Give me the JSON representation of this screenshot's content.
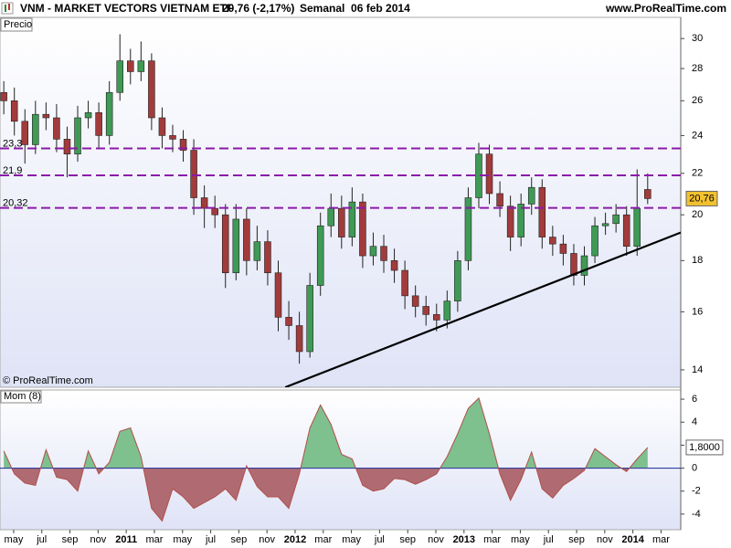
{
  "header": {
    "symbol": "VNM - MARKET VECTORS VIETNAM ETF",
    "change": "20,76 (-2,17%)",
    "period": "Semanal  06 feb 2014",
    "site": "www.ProRealTime.com"
  },
  "chart_data": [
    {
      "type": "candlestick",
      "title": "Precio",
      "credit": "© ProRealTime.com",
      "log_scale": true,
      "up_color": "#3f9a55",
      "down_color": "#a23b3b",
      "xlim": [
        -0.97,
        47.4
      ],
      "ylim": [
        13.45,
        31.5
      ],
      "yticks": [
        14,
        16,
        18,
        20,
        22,
        24,
        26,
        28,
        30
      ],
      "x": [
        -0.7,
        0.05,
        0.8,
        1.55,
        2.3,
        3.05,
        3.8,
        4.55,
        5.3,
        6.05,
        6.8,
        7.55,
        8.3,
        9.05,
        9.8,
        10.55,
        11.3,
        12.05,
        12.8,
        13.55,
        14.3,
        15.05,
        15.8,
        16.55,
        17.3,
        18.05,
        18.8,
        19.55,
        20.3,
        21.05,
        21.8,
        22.55,
        23.3,
        24.05,
        24.8,
        25.55,
        26.3,
        27.05,
        27.8,
        28.55,
        29.3,
        30.05,
        30.8,
        31.55,
        32.3,
        33.05,
        33.8,
        34.55,
        35.3,
        36.05,
        36.8,
        37.55,
        38.3,
        39.05,
        39.8,
        40.55,
        41.3,
        42.05,
        42.8,
        43.55,
        44.3,
        45.05
      ],
      "open": [
        26.5,
        26.0,
        24.8,
        23.5,
        25.2,
        25.0,
        23.8,
        23.0,
        25.0,
        25.3,
        24.0,
        26.5,
        28.5,
        27.8,
        28.5,
        25.0,
        24.0,
        23.8,
        23.2,
        20.8,
        20.3,
        20.0,
        17.5,
        19.8,
        18.0,
        18.8,
        17.5,
        15.8,
        15.5,
        14.6,
        17.0,
        19.5,
        20.3,
        19.0,
        20.6,
        18.2,
        18.6,
        18.0,
        17.6,
        16.6,
        16.2,
        15.9,
        15.7,
        16.4,
        18.0,
        20.8,
        23.0,
        21.0,
        20.4,
        19.0,
        20.5,
        21.3,
        19.0,
        18.7,
        18.3,
        17.4,
        18.2,
        19.5,
        19.6,
        20.0,
        18.6,
        21.2
      ],
      "high": [
        27.2,
        26.8,
        25.5,
        26.0,
        25.9,
        25.8,
        24.5,
        25.7,
        26.0,
        25.9,
        27.2,
        30.3,
        29.3,
        29.8,
        29.0,
        25.6,
        24.6,
        24.3,
        23.8,
        21.4,
        20.9,
        20.5,
        20.5,
        20.3,
        19.5,
        19.3,
        18.0,
        16.4,
        16.0,
        17.5,
        20.1,
        21.0,
        20.9,
        21.3,
        21.0,
        19.2,
        19.1,
        18.5,
        18.0,
        17.0,
        16.6,
        16.3,
        16.8,
        18.4,
        21.3,
        23.6,
        23.5,
        21.6,
        20.9,
        21.0,
        21.8,
        21.7,
        19.5,
        19.1,
        18.7,
        18.6,
        19.9,
        20.1,
        20.5,
        20.4,
        22.2,
        22.0
      ],
      "low": [
        25.2,
        24.0,
        22.5,
        23.0,
        24.3,
        23.1,
        21.8,
        22.6,
        24.4,
        23.3,
        23.5,
        26.0,
        27.0,
        27.2,
        24.3,
        23.3,
        23.1,
        22.6,
        20.0,
        19.4,
        19.4,
        16.9,
        17.2,
        17.4,
        17.6,
        17.0,
        15.3,
        15.0,
        14.2,
        14.4,
        16.6,
        19.0,
        18.5,
        18.6,
        17.7,
        17.8,
        17.5,
        17.1,
        16.1,
        15.8,
        15.5,
        15.3,
        15.4,
        16.0,
        17.6,
        20.3,
        20.5,
        19.9,
        18.4,
        18.6,
        20.0,
        18.5,
        18.2,
        17.8,
        17.0,
        17.0,
        17.9,
        19.1,
        19.2,
        18.2,
        18.2,
        20.5
      ],
      "close": [
        26.0,
        24.8,
        23.5,
        25.2,
        25.0,
        23.8,
        23.0,
        25.0,
        25.3,
        24.0,
        26.5,
        28.5,
        27.8,
        28.5,
        25.0,
        24.0,
        23.8,
        23.2,
        20.8,
        20.3,
        20.0,
        17.5,
        19.8,
        18.0,
        18.8,
        17.5,
        15.8,
        15.5,
        14.6,
        17.0,
        19.5,
        20.3,
        19.0,
        20.6,
        18.2,
        18.6,
        18.0,
        17.6,
        16.6,
        16.2,
        15.9,
        15.7,
        16.4,
        18.0,
        20.8,
        23.0,
        21.0,
        20.4,
        19.0,
        20.5,
        21.3,
        19.0,
        18.7,
        18.3,
        17.4,
        18.2,
        19.5,
        19.6,
        20.0,
        18.6,
        20.3,
        20.76
      ],
      "levels": [
        {
          "value": 23.3,
          "label": "23,3"
        },
        {
          "value": 21.9,
          "label": "21,9"
        },
        {
          "value": 20.32,
          "label": "20,32"
        }
      ],
      "level_color": "#8a1aa8",
      "trend_line": {
        "x": [
          19.3,
          47.4
        ],
        "y": [
          13.45,
          19.2
        ]
      },
      "last": {
        "value": 20.76,
        "label": "20,76"
      },
      "last_color": "#f2c12e"
    },
    {
      "type": "area",
      "title": "Mom (8)",
      "pos_color": "#7fc08f",
      "neg_color": "#b06a72",
      "line_color": "#b0504a",
      "xlim": [
        -0.97,
        47.4
      ],
      "ylim": [
        -5.36,
        6.8
      ],
      "yticks": [
        -4,
        -2,
        0,
        2,
        4,
        6
      ],
      "xticks": [
        {
          "value": 0,
          "label": "may"
        },
        {
          "value": 2,
          "label": "jul"
        },
        {
          "value": 4,
          "label": "sep"
        },
        {
          "value": 6,
          "label": "nov"
        },
        {
          "value": 8,
          "label": "2011"
        },
        {
          "value": 10,
          "label": "mar"
        },
        {
          "value": 12,
          "label": "may"
        },
        {
          "value": 14,
          "label": "jul"
        },
        {
          "value": 16,
          "label": "sep"
        },
        {
          "value": 18,
          "label": "nov"
        },
        {
          "value": 20,
          "label": "2012"
        },
        {
          "value": 22,
          "label": "mar"
        },
        {
          "value": 24,
          "label": "may"
        },
        {
          "value": 26,
          "label": "jul"
        },
        {
          "value": 28,
          "label": "sep"
        },
        {
          "value": 30,
          "label": "nov"
        },
        {
          "value": 32,
          "label": "2013"
        },
        {
          "value": 34,
          "label": "mar"
        },
        {
          "value": 36,
          "label": "may"
        },
        {
          "value": 38,
          "label": "jul"
        },
        {
          "value": 40,
          "label": "sep"
        },
        {
          "value": 42,
          "label": "nov"
        },
        {
          "value": 44,
          "label": "2014"
        },
        {
          "value": 46,
          "label": "mar"
        }
      ],
      "x": [
        -0.7,
        0.05,
        0.8,
        1.55,
        2.3,
        3.05,
        3.8,
        4.55,
        5.3,
        6.05,
        6.8,
        7.55,
        8.3,
        9.05,
        9.8,
        10.55,
        11.3,
        12.05,
        12.8,
        13.55,
        14.3,
        15.05,
        15.8,
        16.55,
        17.3,
        18.05,
        18.8,
        19.55,
        20.3,
        21.05,
        21.8,
        22.55,
        23.3,
        24.05,
        24.8,
        25.55,
        26.3,
        27.05,
        27.8,
        28.55,
        29.3,
        30.05,
        30.8,
        31.55,
        32.3,
        33.05,
        33.8,
        34.55,
        35.3,
        36.05,
        36.8,
        37.55,
        38.3,
        39.05,
        39.8,
        40.55,
        41.3,
        42.05,
        42.8,
        43.55,
        44.3,
        45.05
      ],
      "values": [
        1.5,
        -0.5,
        -1.3,
        -1.5,
        1.6,
        -0.8,
        -1.0,
        -2.0,
        1.5,
        -0.5,
        0.5,
        3.2,
        3.5,
        1.0,
        -3.5,
        -4.6,
        -1.8,
        -2.5,
        -3.5,
        -3.0,
        -2.5,
        -1.8,
        -2.8,
        0.2,
        -1.6,
        -2.5,
        -2.5,
        -3.5,
        -0.5,
        3.5,
        5.5,
        3.8,
        1.2,
        0.8,
        -1.5,
        -2.0,
        -1.8,
        -0.9,
        -1.0,
        -1.4,
        -1.0,
        -0.5,
        1.0,
        3.0,
        5.2,
        6.1,
        3.0,
        -0.5,
        -2.8,
        -1.0,
        1.4,
        -1.8,
        -2.6,
        -1.5,
        -0.9,
        -0.2,
        1.7,
        1.0,
        0.3,
        -0.3,
        0.8,
        1.8
      ],
      "last": {
        "value": 1.8,
        "label": "1,8000"
      }
    }
  ]
}
